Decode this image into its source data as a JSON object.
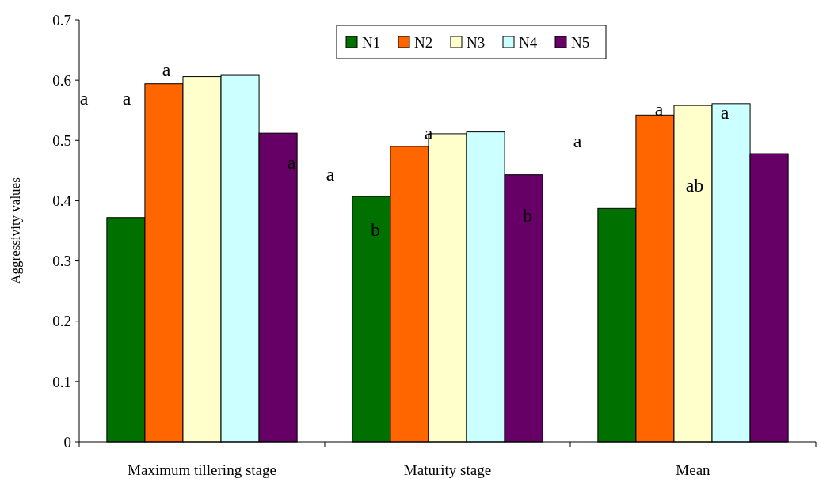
{
  "chart_data": {
    "type": "bar",
    "ylabel": "Aggressivity values",
    "categories": [
      "Maximum tillering stage",
      "Maturity stage",
      "Mean"
    ],
    "series": [
      {
        "name": "N1",
        "color": "#007000",
        "values": [
          0.372,
          0.407,
          0.387
        ]
      },
      {
        "name": "N2",
        "color": "#ff6600",
        "values": [
          0.594,
          0.49,
          0.542
        ]
      },
      {
        "name": "N3",
        "color": "#ffffcc",
        "values": [
          0.606,
          0.511,
          0.558
        ]
      },
      {
        "name": "N4",
        "color": "#ccffff",
        "values": [
          0.608,
          0.514,
          0.561
        ]
      },
      {
        "name": "N5",
        "color": "#660066",
        "values": [
          0.512,
          0.443,
          0.478
        ]
      }
    ],
    "ylim": [
      0,
      0.7
    ],
    "yticks": [
      0,
      0.1,
      0.2,
      0.3,
      0.4,
      0.5,
      0.6,
      0.7
    ],
    "grid": false,
    "legend": "top",
    "annotations": [
      "a",
      "a",
      "a",
      "a",
      "a",
      "b",
      "a",
      "b",
      "a",
      "a",
      "ab",
      "a"
    ]
  }
}
